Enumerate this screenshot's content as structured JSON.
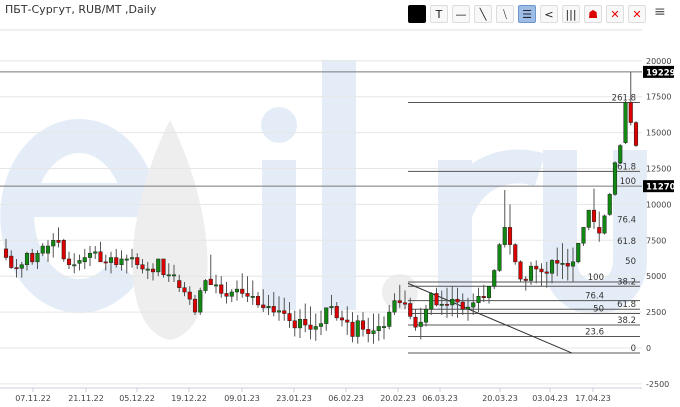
{
  "title": "ПБТ-Сургут, RUB/MT ,Daily",
  "toolbar": [
    {
      "name": "color-swatch",
      "glyph": "■",
      "selected": false
    },
    {
      "name": "text-tool",
      "glyph": "T",
      "selected": false
    },
    {
      "name": "horizontal-line-tool",
      "glyph": "—",
      "selected": false
    },
    {
      "name": "trend-line-tool",
      "glyph": "╲",
      "selected": false
    },
    {
      "name": "channel-tool",
      "glyph": "⧹",
      "selected": false
    },
    {
      "name": "fibonacci-tool",
      "glyph": "☰",
      "selected": true
    },
    {
      "name": "fan-tool",
      "glyph": "<",
      "selected": false
    },
    {
      "name": "vertical-lines-tool",
      "glyph": "|||",
      "selected": false
    },
    {
      "name": "fib-arcs-tool",
      "glyph": "☗",
      "selected": false
    },
    {
      "name": "delete-selected-tool",
      "glyph": "✕",
      "selected": false
    },
    {
      "name": "delete-all-tool",
      "glyph": "✕",
      "selected": false
    }
  ],
  "menu_glyph": "≡",
  "watermark": "eOil.ru",
  "colors": {
    "up": "#118811",
    "down": "#dd0000",
    "grid": "#e6e6e6",
    "level": "#555555",
    "watermark": "#e4edf7"
  },
  "chart_data": {
    "type": "candlestick",
    "title": "ПБТ-Сургут, RUB/MT ,Daily",
    "ylim": [
      -3000,
      21000
    ],
    "y_ticks": [
      20000,
      17500,
      15000,
      12500,
      10000,
      7500,
      5000,
      2500,
      0,
      -2500
    ],
    "x_tick_labels": [
      "07.11.22",
      "21.11.22",
      "05.12.22",
      "19.12.22",
      "09.01.23",
      "23.01.23",
      "06.02.23",
      "20.02.23",
      "06.03.23",
      "20.03.23",
      "03.04.23",
      "17.04.23"
    ],
    "grid": true,
    "price_markers": [
      19229,
      11270
    ],
    "fib_upper": [
      {
        "label": "261.8",
        "value": 17100,
        "line": true
      },
      {
        "label": "161.8",
        "value": 12300,
        "line": true
      },
      {
        "label": "100",
        "value": 11270,
        "line": false
      },
      {
        "label": "76.4",
        "value": 8600,
        "line": false
      },
      {
        "label": "61.8",
        "value": 7100,
        "line": false
      },
      {
        "label": "50",
        "value": 5700,
        "line": false
      }
    ],
    "fib_lower": [
      {
        "label": "100",
        "value": 4600
      },
      {
        "label": "38.2",
        "value": 4300
      },
      {
        "label": "76.4",
        "value": 3300
      },
      {
        "label": "61.8",
        "value": 2700
      },
      {
        "label": "50",
        "value": 2400
      },
      {
        "label": "38.2",
        "value": 1600
      },
      {
        "label": "23.6",
        "value": 800
      },
      {
        "label": "0",
        "value": -350
      }
    ],
    "trend_line": {
      "from": 4500,
      "to": -350
    },
    "ohlc": [
      [
        6900,
        7600,
        6100,
        6300
      ],
      [
        6400,
        6800,
        5500,
        5600
      ],
      [
        5600,
        6200,
        4900,
        5550
      ],
      [
        5550,
        6000,
        4900,
        5800
      ],
      [
        5800,
        6700,
        5400,
        6600
      ],
      [
        6600,
        6900,
        5800,
        6000
      ],
      [
        6000,
        6800,
        5500,
        6600
      ],
      [
        6600,
        7300,
        6400,
        7100
      ],
      [
        6600,
        7500,
        6000,
        7100
      ],
      [
        7100,
        8000,
        6300,
        7500
      ],
      [
        7500,
        8400,
        7000,
        7350
      ],
      [
        7500,
        7600,
        6000,
        6200
      ],
      [
        6200,
        6700,
        5500,
        5800
      ],
      [
        5800,
        6600,
        5200,
        5800
      ],
      [
        5900,
        6500,
        5400,
        6100
      ],
      [
        6000,
        6900,
        5500,
        6300
      ],
      [
        6300,
        7100,
        5700,
        6600
      ],
      [
        6600,
        7100,
        6200,
        6700
      ],
      [
        6700,
        7400,
        6000,
        6000
      ],
      [
        6000,
        6500,
        5400,
        5950
      ],
      [
        5950,
        6700,
        5200,
        6300
      ],
      [
        6300,
        6900,
        5600,
        5800
      ],
      [
        5800,
        6800,
        5400,
        6200
      ],
      [
        6200,
        6500,
        5200,
        6200
      ],
      [
        6200,
        6900,
        5600,
        6300
      ],
      [
        6300,
        6600,
        5500,
        5800
      ],
      [
        5800,
        6200,
        5200,
        5500
      ],
      [
        5500,
        6000,
        4800,
        5500
      ],
      [
        5500,
        5900,
        4700,
        5300
      ],
      [
        5300,
        6200,
        5000,
        6200
      ],
      [
        6200,
        6200,
        4900,
        5100
      ],
      [
        5100,
        5900,
        4600,
        5100
      ],
      [
        5100,
        5800,
        4600,
        5100
      ],
      [
        4700,
        5100,
        3900,
        4200
      ],
      [
        4200,
        4600,
        3600,
        3900
      ],
      [
        3900,
        4300,
        3000,
        3400
      ],
      [
        3400,
        3700,
        2300,
        2500
      ],
      [
        2500,
        4200,
        2300,
        4000
      ],
      [
        4000,
        4800,
        3800,
        4700
      ],
      [
        4800,
        6500,
        4500,
        4400
      ],
      [
        4400,
        5100,
        3800,
        4400
      ],
      [
        4400,
        5000,
        3500,
        3800
      ],
      [
        3800,
        4600,
        3100,
        3600
      ],
      [
        3600,
        4100,
        3200,
        3900
      ],
      [
        3900,
        4700,
        3300,
        4100
      ],
      [
        4100,
        5200,
        3500,
        3800
      ],
      [
        3800,
        5000,
        3200,
        3600
      ],
      [
        3600,
        4700,
        3000,
        3600
      ],
      [
        3600,
        3900,
        2800,
        3000
      ],
      [
        3000,
        4100,
        2500,
        2800
      ],
      [
        2800,
        3700,
        2300,
        2900
      ],
      [
        2900,
        3900,
        2200,
        2500
      ],
      [
        2500,
        3600,
        1900,
        2600
      ],
      [
        2600,
        3500,
        1900,
        2400
      ],
      [
        2400,
        3200,
        1400,
        1900
      ],
      [
        1900,
        2600,
        800,
        1400
      ],
      [
        1400,
        2700,
        700,
        2000
      ],
      [
        2000,
        3100,
        1100,
        1600
      ],
      [
        1600,
        2900,
        600,
        1300
      ],
      [
        1300,
        2400,
        500,
        1500
      ],
      [
        1500,
        2600,
        900,
        1700
      ],
      [
        1700,
        2800,
        1200,
        2800
      ],
      [
        2800,
        3700,
        2300,
        2900
      ],
      [
        2900,
        3200,
        1900,
        2100
      ],
      [
        2100,
        2600,
        1500,
        1950
      ],
      [
        1950,
        2900,
        900,
        1800
      ],
      [
        1800,
        2500,
        400,
        800
      ],
      [
        800,
        2300,
        300,
        1900
      ],
      [
        1900,
        2500,
        800,
        1300
      ],
      [
        1300,
        2100,
        400,
        1000
      ],
      [
        1000,
        2400,
        300,
        1200
      ],
      [
        1200,
        2400,
        500,
        1500
      ],
      [
        1500,
        2200,
        600,
        1500
      ],
      [
        1500,
        3000,
        1300,
        2500
      ],
      [
        2500,
        3800,
        2300,
        3300
      ],
      [
        3300,
        4400,
        2800,
        3150
      ],
      [
        3150,
        4000,
        2700,
        3050
      ],
      [
        3100,
        3500,
        2000,
        2200
      ],
      [
        2150,
        2700,
        1200,
        1450
      ],
      [
        1500,
        2800,
        600,
        1800
      ],
      [
        1800,
        3000,
        1500,
        2700
      ],
      [
        2700,
        3900,
        2300,
        3800
      ],
      [
        3800,
        4200,
        2900,
        3000
      ],
      [
        3000,
        4000,
        2300,
        3050
      ],
      [
        3050,
        4200,
        2100,
        3000
      ],
      [
        3000,
        4300,
        2200,
        3400
      ],
      [
        3400,
        4200,
        2100,
        3200
      ],
      [
        3200,
        3800,
        2300,
        2700
      ],
      [
        2700,
        3500,
        1900,
        2850
      ],
      [
        2850,
        3800,
        2300,
        3150
      ],
      [
        3150,
        4200,
        2500,
        3600
      ],
      [
        3600,
        4400,
        3200,
        3500
      ],
      [
        3500,
        4300,
        3100,
        4300
      ],
      [
        4300,
        5500,
        4100,
        5400
      ],
      [
        5400,
        7300,
        5300,
        7200
      ],
      [
        7200,
        11000,
        7000,
        8400
      ],
      [
        8400,
        10000,
        6500,
        7200
      ],
      [
        7200,
        7300,
        5800,
        6000
      ],
      [
        6000,
        6100,
        4600,
        4800
      ],
      [
        4800,
        5000,
        4000,
        4700
      ],
      [
        4700,
        6000,
        4400,
        5700
      ],
      [
        5700,
        6100,
        4500,
        5500
      ],
      [
        5500,
        5900,
        4300,
        5300
      ],
      [
        5300,
        6000,
        4200,
        5200
      ],
      [
        5200,
        6200,
        4500,
        6100
      ],
      [
        6100,
        7000,
        5000,
        5900
      ],
      [
        5900,
        7300,
        4800,
        5900
      ],
      [
        5900,
        6900,
        4700,
        5700
      ],
      [
        5700,
        7000,
        4600,
        6000
      ],
      [
        6000,
        7300,
        5900,
        7300
      ],
      [
        7300,
        8400,
        7100,
        8400
      ],
      [
        8400,
        9600,
        8200,
        9600
      ],
      [
        9600,
        11100,
        8300,
        8800
      ],
      [
        8400,
        9500,
        7400,
        8000
      ],
      [
        8000,
        9300,
        7900,
        9200
      ],
      [
        9300,
        10800,
        9200,
        10700
      ],
      [
        10700,
        13000,
        10600,
        12900
      ],
      [
        12900,
        14200,
        12800,
        14100
      ],
      [
        14300,
        17200,
        14200,
        17100
      ],
      [
        17100,
        19229,
        15500,
        15700
      ],
      [
        15700,
        15800,
        14000,
        14100
      ]
    ]
  }
}
